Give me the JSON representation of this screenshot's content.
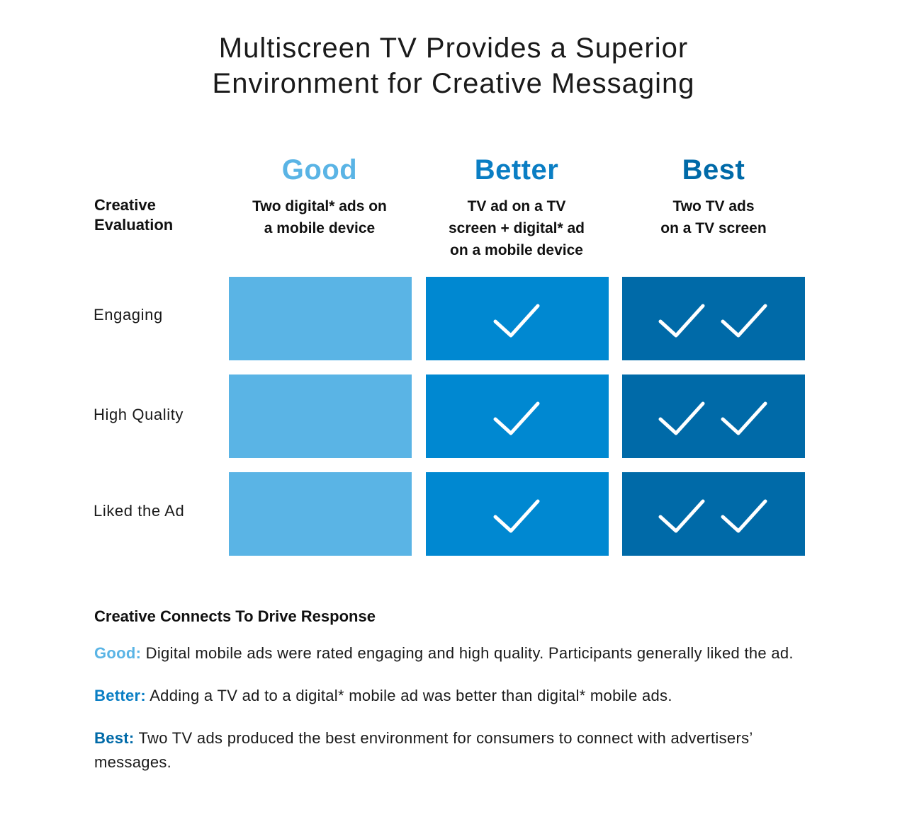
{
  "title": {
    "line1": "Multiscreen TV Provides a Superior",
    "line2": "Environment for Creative Messaging"
  },
  "colors": {
    "good": "#5ab4e5",
    "better": "#0088d1",
    "best": "#006aa8",
    "good_text": "#5ab4e5",
    "better_text": "#0a7ec4",
    "best_text": "#006aa8",
    "check": "#ffffff"
  },
  "chart_data": {
    "type": "table",
    "row_header": [
      "Creative",
      "Evaluation"
    ],
    "columns": [
      {
        "name": "Good",
        "description": [
          "Two digital* ads on",
          "a mobile device"
        ]
      },
      {
        "name": "Better",
        "description": [
          "TV ad on a TV",
          "screen + digital* ad",
          "on a mobile device"
        ]
      },
      {
        "name": "Best",
        "description": [
          "Two TV ads",
          "on a TV screen"
        ]
      }
    ],
    "rows": [
      "Engaging",
      "High Quality",
      "Liked the Ad"
    ],
    "checks": [
      [
        0,
        1,
        2
      ],
      [
        0,
        1,
        2
      ],
      [
        0,
        1,
        2
      ]
    ],
    "check_icon": "checkmark-icon"
  },
  "summary": {
    "heading": "Creative Connects To Drive Response",
    "items": [
      {
        "lead": "Good:",
        "text": " Digital mobile ads were rated engaging and high quality. Participants generally liked the ad."
      },
      {
        "lead": "Better:",
        "text": " Adding a TV ad to a digital* mobile ad was better than digital* mobile ads."
      },
      {
        "lead": "Best:",
        "text": " Two TV ads produced the best environment for consumers to connect with advertisers’ messages."
      }
    ]
  }
}
